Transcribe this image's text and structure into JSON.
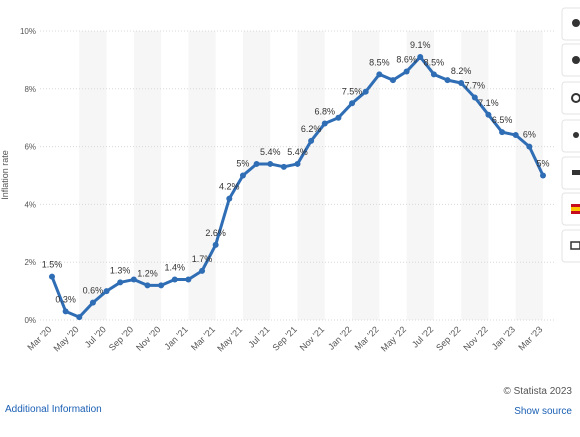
{
  "chart_data": {
    "type": "line",
    "y_label": "Inflation rate",
    "categories": [
      "Mar '20",
      null,
      "May '20",
      null,
      "Jul '20",
      null,
      "Sep '20",
      null,
      "Nov '20",
      null,
      "Jan '21",
      null,
      "Mar '21",
      null,
      "May '21",
      null,
      "Jul '21",
      null,
      "Sep '21",
      null,
      "Nov '21",
      null,
      "Jan '22",
      null,
      "Mar '22",
      null,
      "May '22",
      null,
      "Jul '22",
      null,
      "Sep '22",
      null,
      "Nov '22",
      null,
      "Jan '23",
      null,
      "Mar '23"
    ],
    "series": [
      {
        "color": "#2f6db5",
        "values": [
          1.5,
          0.3,
          0.1,
          0.6,
          1.0,
          1.3,
          1.4,
          1.2,
          1.2,
          1.4,
          1.4,
          1.7,
          2.6,
          4.2,
          5.0,
          5.4,
          5.4,
          5.3,
          5.4,
          6.2,
          6.8,
          7.0,
          7.5,
          7.9,
          8.5,
          8.3,
          8.6,
          9.1,
          8.5,
          8.3,
          8.2,
          7.7,
          7.1,
          6.5,
          6.4,
          6.0,
          5.0
        ],
        "value_labels": [
          "1.5%",
          "0.3%",
          null,
          "0.6%",
          null,
          "1.3%",
          null,
          "1.2%",
          null,
          "1.4%",
          null,
          "1.7%",
          "2.6%",
          "4.2%",
          "5%",
          null,
          "5.4%",
          null,
          "5.4%",
          "6.2%",
          "6.8%",
          null,
          "7.5%",
          null,
          "8.5%",
          null,
          "8.6%",
          "9.1%",
          "8.5%",
          null,
          "8.2%",
          "7.7%",
          "7.1%",
          "6.5%",
          null,
          "6%",
          "5%"
        ]
      }
    ],
    "ylim": [
      0,
      10
    ],
    "yticks": [
      {
        "value": 0,
        "label": "0%"
      },
      {
        "value": 2,
        "label": "2%"
      },
      {
        "value": 4,
        "label": "4%"
      },
      {
        "value": 6,
        "label": "6%"
      },
      {
        "value": 8,
        "label": "8%"
      },
      {
        "value": 10,
        "label": "10%"
      }
    ],
    "grid": true
  },
  "footer": {
    "copyright": "© Statista 2023",
    "additional": "Additional Information",
    "source": "Show source"
  }
}
